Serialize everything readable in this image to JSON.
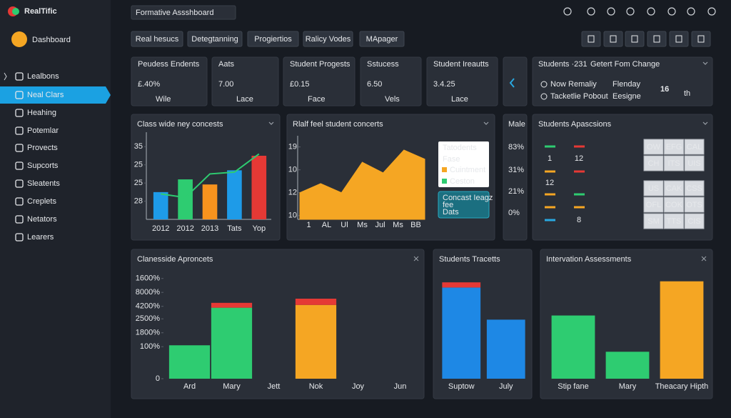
{
  "sidebar": {
    "brand": "RealTific",
    "title": "Dashboard",
    "items": [
      "Lealbons",
      "Neal Clars",
      "Heahing",
      "Potemlar",
      "Provects",
      "Supcorts",
      "Sleatents",
      "Creplets",
      "Netators",
      "Learers"
    ],
    "active": 1
  },
  "header": {
    "title": "Formative Assshboard",
    "tabs": [
      "Real hesucs",
      "Detegtanning",
      "Progiertios",
      "Ralicy Vodes",
      "MApager"
    ]
  },
  "kpis": [
    {
      "label": "Peudess Endents",
      "value": "£.40%",
      "sub": "Wile",
      "color": "#2ecc71"
    },
    {
      "label": "Aats",
      "value": "7.00",
      "sub": "Lace",
      "color": "#f2f4f7"
    },
    {
      "label": "Student Progests",
      "value": "£0.15",
      "sub": "Face",
      "color": "#f2f4f7"
    },
    {
      "label": "Sstucess",
      "value": "6.50",
      "sub": "Vels",
      "color": "#f2f4f7"
    },
    {
      "label": "Student Ireautts",
      "value": "3.4.25",
      "sub": "Lace",
      "color": "#f2f4f7"
    }
  ],
  "change_card": {
    "prefix": "Students ·231",
    "title": "Getert Fom Change",
    "rows": [
      {
        "text": "Now Remaliy",
        "tag": "Flenday"
      },
      {
        "text": "Tacketlie Pobout",
        "tag": "Eesigne"
      }
    ],
    "big": "16",
    "unit": "th"
  },
  "male_card": {
    "title": "Male",
    "values": [
      "83%",
      "31%",
      "21%",
      "0%"
    ],
    "colors": [
      "#f5a623",
      "#29a8e0",
      "#f5c518",
      "#8a9099"
    ]
  },
  "applications": {
    "title": "Students Apascsions",
    "numbers": [
      "1",
      "12",
      "12",
      "8"
    ],
    "grid": [
      [
        "OW",
        "EFG",
        "CAL"
      ],
      [
        "CH",
        "ITS",
        "UIS"
      ],
      [
        "US",
        "CAK",
        "CSS"
      ],
      [
        "OFL",
        "COK",
        "OTS"
      ],
      [
        "SM",
        "TTS",
        "CIS"
      ]
    ]
  },
  "chart_data": [
    {
      "type": "bar",
      "title": "Class wide ney concests",
      "categories": [
        "2012",
        "2012",
        "2013",
        "Tats",
        "Yop"
      ],
      "values": [
        22.5,
        26,
        24.6,
        28.5,
        32.5
      ],
      "colors": [
        "#1e9be8",
        "#2ecc71",
        "#f7931e",
        "#1e9be8",
        "#e53935"
      ],
      "line": {
        "color": "#2ecc71",
        "values": [
          22,
          21,
          27.5,
          28,
          33
        ]
      },
      "ylim": [
        15,
        38
      ],
      "yticks": [
        35,
        {
          "value": 30,
          "label": "25"
        },
        25,
        {
          "value": 20,
          "label": "28"
        }
      ]
    },
    {
      "type": "area",
      "title": "Rlalf feel student concerts",
      "categories": [
        "1",
        "AL",
        "Ul",
        "Ms",
        "Jul",
        "Ms",
        "BB"
      ],
      "series": [
        {
          "name": "Cuintment",
          "color": "#f5a623",
          "values": [
            13,
            14.2,
            13,
            17,
            15.6,
            18.6,
            17.4
          ]
        }
      ],
      "legend_title": "Tatodents",
      "legend_sub": "Fase",
      "legend_extra": [
        {
          "name": "Ceston",
          "color": "#2ecc71"
        }
      ],
      "note": [
        "Concast Ieagz",
        "fee",
        "Dats"
      ],
      "ylim": [
        9.5,
        20
      ],
      "yticks": [
        19,
        {
          "value": 16,
          "label": "10"
        },
        {
          "value": 13,
          "label": "12"
        },
        10
      ]
    },
    {
      "type": "stacked_bar",
      "title": "Clanesside Aproncets",
      "categories": [
        "Ard",
        "Mary",
        "Jett",
        "Nok",
        "Joy",
        "Jun"
      ],
      "series": [
        {
          "color": "#2ecc71",
          "values": [
            2.4,
            5.1,
            null,
            null,
            null,
            null
          ]
        },
        {
          "color": "#f5a623",
          "values": [
            null,
            null,
            null,
            5.3,
            null,
            null
          ]
        },
        {
          "color": "#e53935",
          "values": [
            null,
            0.35,
            null,
            0.45,
            null,
            null
          ]
        }
      ],
      "ylim": [
        0,
        7.7
      ],
      "yticks": [
        0,
        {
          "value": 2.3,
          "label": "100%"
        },
        {
          "value": 3.3,
          "label": "1800%"
        },
        {
          "value": 4.3,
          "label": "2500%"
        },
        {
          "value": 5.2,
          "label": "4200%"
        },
        {
          "value": 6.2,
          "label": "8000%"
        },
        {
          "value": 7.2,
          "label": "1600%"
        }
      ]
    },
    {
      "type": "stacked_bar",
      "title": "Students Tracetts",
      "categories": [
        "Suptow",
        "July"
      ],
      "series": [
        {
          "color": "#1e88e5",
          "values": [
            88,
            57
          ]
        },
        {
          "color": "#e53935",
          "values": [
            5,
            null
          ]
        }
      ],
      "ylim": [
        0,
        100
      ]
    },
    {
      "type": "bar",
      "title": "Intervation Assessments",
      "categories": [
        "Stip fane",
        "Mary",
        "Theacary Hipth"
      ],
      "values": [
        61,
        26,
        94
      ],
      "colors": [
        "#2ecc71",
        "#2ecc71",
        "#f5a623"
      ],
      "ylim": [
        0,
        100
      ]
    }
  ]
}
